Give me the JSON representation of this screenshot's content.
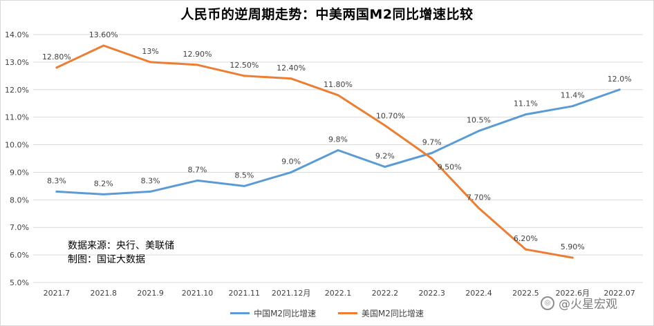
{
  "chart_data": {
    "type": "line",
    "title": "人民币的逆周期走势：中美两国M2同比增速比较",
    "categories": [
      "2021.7",
      "2021.8",
      "2021.9",
      "2021.10",
      "2021.11",
      "2021.12月",
      "2022.1",
      "2022.2",
      "2022.3",
      "2022.4",
      "2022.5",
      "2022.6月",
      "2022.07"
    ],
    "ylim": [
      5.0,
      14.0
    ],
    "yticks": [
      "5.0%",
      "6.0%",
      "7.0%",
      "8.0%",
      "9.0%",
      "10.0%",
      "11.0%",
      "12.0%",
      "13.0%",
      "14.0%"
    ],
    "series": [
      {
        "name": "中国M2同比增速",
        "color": "#5b9bd5",
        "values": [
          8.3,
          8.2,
          8.3,
          8.7,
          8.5,
          9.0,
          9.8,
          9.2,
          9.7,
          10.5,
          11.1,
          11.4,
          12.0
        ],
        "labels": [
          "8.3%",
          "8.2%",
          "8.3%",
          "8.7%",
          "8.5%",
          "9.0%",
          "9.8%",
          "9.2%",
          "9.7%",
          "10.5%",
          "11.1%",
          "11.4%",
          "12.0%"
        ]
      },
      {
        "name": "美国M2同比增速",
        "color": "#ed7d31",
        "values": [
          12.8,
          13.6,
          13.0,
          12.9,
          12.5,
          12.4,
          11.8,
          10.7,
          9.5,
          7.7,
          6.2,
          5.9,
          null
        ],
        "labels": [
          "12.80%",
          "13.60%",
          "13%",
          "12.90%",
          "12.50%",
          "12.40%",
          "11.80%",
          "10.70%",
          "9.50%",
          "7.70%",
          "6.20%",
          "5.90%",
          null
        ]
      }
    ],
    "legend": "bottom",
    "grid": true
  },
  "notes": {
    "source": "数据来源：央行、美联储",
    "made_by": "制图：国证大数据"
  },
  "watermark": {
    "text": "@火星宏观"
  }
}
